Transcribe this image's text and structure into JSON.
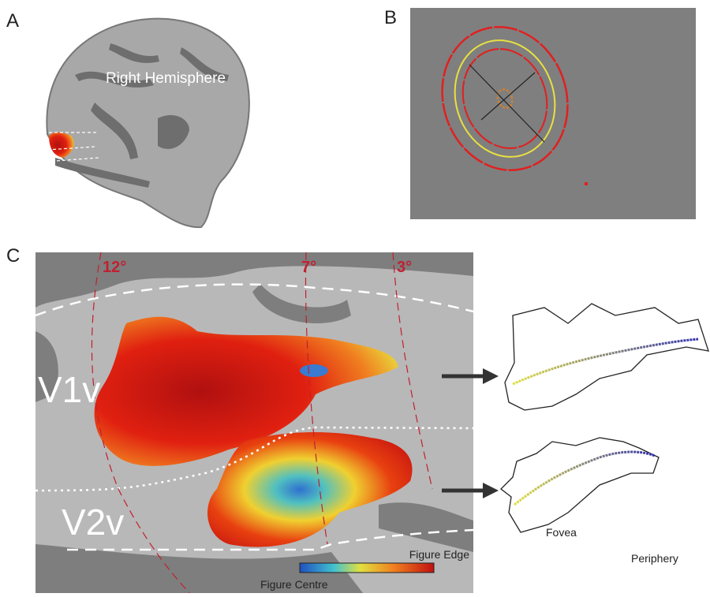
{
  "panels": {
    "a": {
      "label": "A",
      "title": "Right Hemisphere"
    },
    "b": {
      "label": "B"
    },
    "c": {
      "label": "C",
      "eccentricities": [
        "12°",
        "7°",
        "3°"
      ],
      "areas": [
        "V1v",
        "V2v"
      ],
      "colorbar": {
        "high": "Figure Edge",
        "low": "Figure Centre"
      },
      "profile_legend": {
        "start": "Fovea",
        "end": "Periphery"
      }
    }
  }
}
